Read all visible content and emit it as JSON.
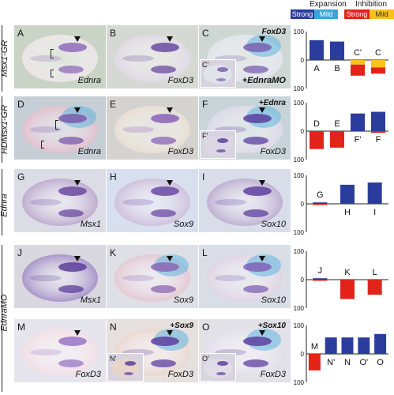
{
  "legend": {
    "expansion_label": "Expansion",
    "inhibition_label": "Inhibition",
    "strong_label": "Strong",
    "mild_label": "Mild",
    "colors": {
      "expansion_strong": "#2b3d9c",
      "expansion_mild": "#38a6d8",
      "inhibition_strong": "#e2231a",
      "inhibition_mild": "#f8c21b"
    }
  },
  "row_labels": [
    {
      "text": "Msx1-GR"
    },
    {
      "text": "HDMsx1-GR"
    },
    {
      "text": "Ednra"
    },
    {
      "text": "EdnraMO"
    }
  ],
  "panels": [
    {
      "letter": "A",
      "gene": "Ednra",
      "top_label": "",
      "inset": ""
    },
    {
      "letter": "B",
      "gene": "FoxD3",
      "top_label": "",
      "inset": ""
    },
    {
      "letter": "C",
      "gene": "",
      "top_label": "FoxD3",
      "inset": "C'",
      "inset_label": "+EdnraMO"
    },
    {
      "letter": "D",
      "gene": "Ednra",
      "top_label": "",
      "inset": ""
    },
    {
      "letter": "E",
      "gene": "FoxD3",
      "top_label": "",
      "inset": ""
    },
    {
      "letter": "F",
      "gene": "FoxD3",
      "top_label": "+Ednra",
      "inset": "F'"
    },
    {
      "letter": "G",
      "gene": "Msx1",
      "top_label": "",
      "inset": ""
    },
    {
      "letter": "H",
      "gene": "Sox9",
      "top_label": "",
      "inset": ""
    },
    {
      "letter": "I",
      "gene": "Sox10",
      "top_label": "",
      "inset": ""
    },
    {
      "letter": "J",
      "gene": "Msx1",
      "top_label": "",
      "inset": ""
    },
    {
      "letter": "K",
      "gene": "Sox9",
      "top_label": "",
      "inset": ""
    },
    {
      "letter": "L",
      "gene": "Sox10",
      "top_label": "",
      "inset": ""
    },
    {
      "letter": "M",
      "gene": "FoxD3",
      "top_label": "",
      "inset": ""
    },
    {
      "letter": "N",
      "gene": "FoxD3",
      "top_label": "+Sox9",
      "inset": "N'"
    },
    {
      "letter": "O",
      "gene": "FoxD3",
      "top_label": "+Sox10",
      "inset": "O'"
    }
  ],
  "chart_data": [
    {
      "type": "bar",
      "categories": [
        "A",
        "B",
        "C'",
        "C"
      ],
      "ylim": [
        -100,
        100
      ],
      "yticks": [
        "100",
        "0",
        "100"
      ],
      "series": [
        {
          "values": [
            {
              "up": 70
            },
            {
              "up": 65
            },
            {
              "down": [
                {
                  "v": 16,
                  "c": "inhibition_mild"
                },
                {
                  "v": 39,
                  "c": "inhibition_strong"
                }
              ]
            },
            {
              "down": [
                {
                  "v": 26,
                  "c": "inhibition_mild"
                },
                {
                  "v": 22,
                  "c": "inhibition_strong"
                }
              ]
            }
          ]
        }
      ]
    },
    {
      "type": "bar",
      "categories": [
        "D",
        "E",
        "F'",
        "F"
      ],
      "ylim": [
        -100,
        100
      ],
      "yticks": [
        "100",
        "0",
        "100"
      ],
      "series": [
        {
          "values": [
            {
              "down": [
                {
                  "v": 63,
                  "c": "inhibition_strong"
                }
              ]
            },
            {
              "down": [
                {
                  "v": 58,
                  "c": "inhibition_strong"
                }
              ]
            },
            {
              "up": 62
            },
            {
              "up": 68,
              "down": [
                {
                  "v": 6,
                  "c": "inhibition_strong"
                }
              ]
            }
          ]
        }
      ]
    },
    {
      "type": "bar",
      "categories": [
        "G",
        "H",
        "I"
      ],
      "ylim": [
        -100,
        100
      ],
      "yticks": [
        "100",
        "0",
        "100"
      ],
      "series": [
        {
          "values": [
            {
              "up": 5,
              "down": [
                {
                  "v": 4,
                  "c": "inhibition_strong"
                }
              ]
            },
            {
              "up": 67
            },
            {
              "up": 75
            }
          ]
        }
      ]
    },
    {
      "type": "bar",
      "categories": [
        "J",
        "K",
        "L"
      ],
      "ylim": [
        -100,
        100
      ],
      "yticks": [
        "100",
        "0",
        "100"
      ],
      "series": [
        {
          "values": [
            {
              "up": 5,
              "down": [
                {
                  "v": 4,
                  "c": "inhibition_strong"
                }
              ]
            },
            {
              "down": [
                {
                  "v": 68,
                  "c": "inhibition_strong"
                }
              ]
            },
            {
              "down": [
                {
                  "v": 53,
                  "c": "inhibition_strong"
                }
              ]
            }
          ]
        }
      ]
    },
    {
      "type": "bar",
      "categories": [
        "M",
        "N'",
        "N",
        "O'",
        "O"
      ],
      "ylim": [
        -100,
        100
      ],
      "yticks": [
        "100",
        "0",
        "100"
      ],
      "series": [
        {
          "values": [
            {
              "down": [
                {
                  "v": 58,
                  "c": "inhibition_strong"
                }
              ]
            },
            {
              "up": 58
            },
            {
              "up": 58
            },
            {
              "up": 58
            },
            {
              "up": 70
            }
          ]
        }
      ]
    }
  ]
}
